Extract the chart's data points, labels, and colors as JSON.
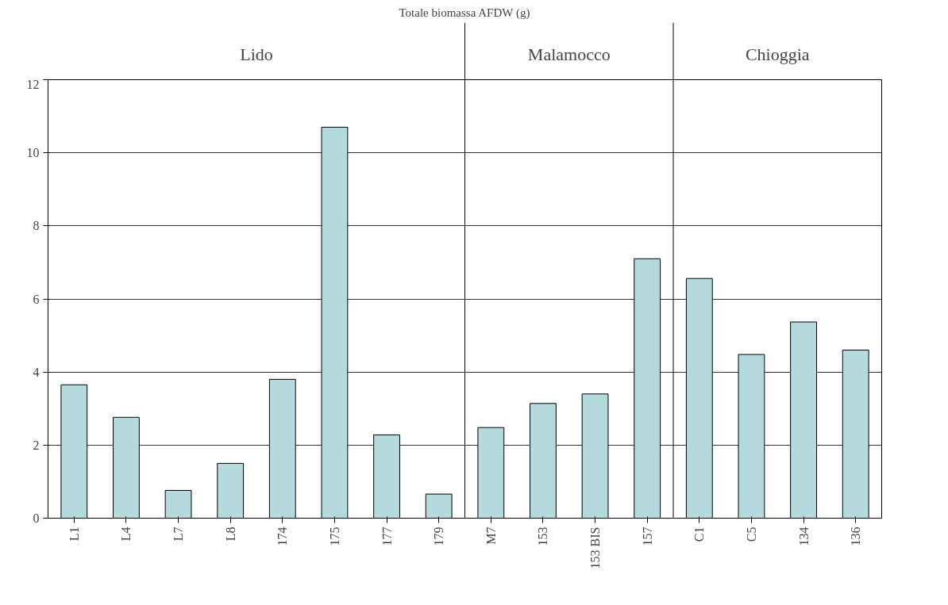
{
  "chart_data": {
    "type": "bar",
    "title": "Totale biomassa AFDW (g)",
    "categories": [
      "L1",
      "L4",
      "L7",
      "L8",
      "174",
      "175",
      "177",
      "179",
      "M7",
      "153",
      "153 BIS",
      "157",
      "C1",
      "C5",
      "134",
      "136"
    ],
    "values": [
      3.65,
      2.76,
      0.76,
      1.5,
      3.8,
      10.7,
      2.28,
      0.66,
      2.48,
      3.14,
      3.4,
      7.1,
      6.56,
      4.48,
      5.37,
      4.6
    ],
    "color": "#b4dade",
    "ylim": [
      0,
      12
    ],
    "yticks": [
      0,
      2,
      4,
      6,
      8,
      10,
      12
    ],
    "grid": "y",
    "annotations": [
      "Lido",
      "Malamocco",
      "Chioggia"
    ]
  }
}
